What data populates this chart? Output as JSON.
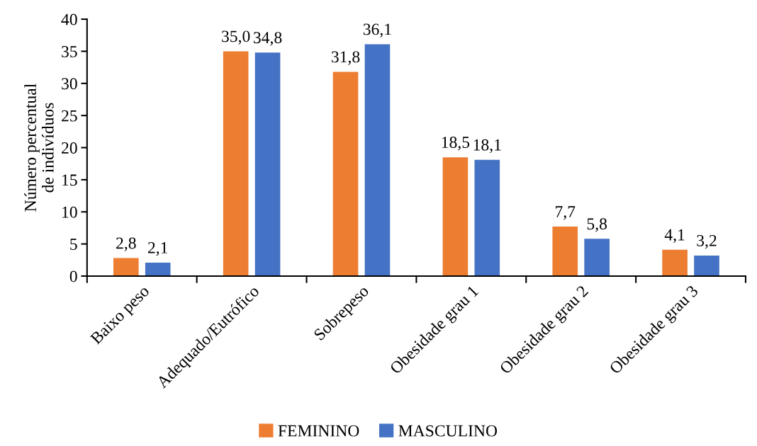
{
  "chart_data": {
    "type": "bar",
    "categories": [
      "Baixo peso",
      "Adequado/Eutrófico",
      "Sobrepeso",
      "Obesidade grau 1",
      "Obesidade grau 2",
      "Obesidade grau 3"
    ],
    "series": [
      {
        "name": "FEMININO",
        "color": "#ed7d31",
        "values": [
          2.8,
          35.0,
          31.8,
          18.5,
          7.7,
          4.1
        ],
        "value_labels": [
          "2,8",
          "35,0",
          "31,8",
          "18,5",
          "7,7",
          "4,1"
        ]
      },
      {
        "name": "MASCULINO",
        "color": "#4472c4",
        "values": [
          2.1,
          34.8,
          36.1,
          18.1,
          5.8,
          3.2
        ],
        "value_labels": [
          "2,1",
          "34,8",
          "36,1",
          "18,1",
          "5,8",
          "3,2"
        ]
      }
    ],
    "ylabel": "Número percentual\nde indivíduos",
    "ylim": [
      0,
      40
    ],
    "yticks": [
      0,
      5,
      10,
      15,
      20,
      25,
      30,
      35,
      40
    ],
    "grid": false,
    "legend": "bottom"
  }
}
